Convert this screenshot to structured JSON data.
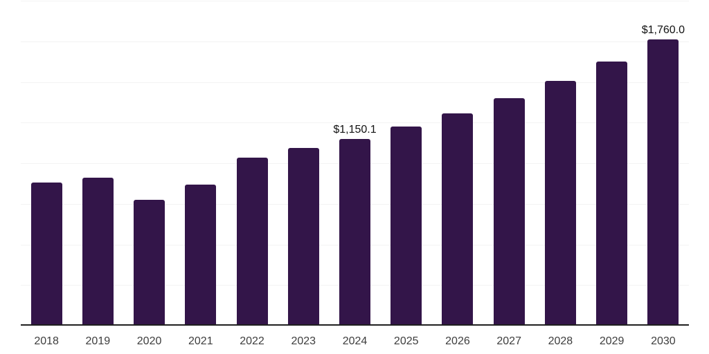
{
  "chart_data": {
    "type": "bar",
    "categories": [
      "2018",
      "2019",
      "2020",
      "2021",
      "2022",
      "2023",
      "2024",
      "2025",
      "2026",
      "2027",
      "2028",
      "2029",
      "2030"
    ],
    "values": [
      880,
      910,
      776,
      870,
      1032,
      1092,
      1150.1,
      1224,
      1308,
      1400,
      1505,
      1626,
      1760
    ],
    "value_labels": [
      "",
      "",
      "",
      "",
      "",
      "",
      "$1,150.1",
      "",
      "",
      "",
      "",
      "",
      "$1,760.0"
    ],
    "title": "",
    "xlabel": "",
    "ylabel": "",
    "ylim": [
      0,
      2000
    ],
    "gridline_step": 250,
    "grid": true,
    "legend": false,
    "colors": {
      "bar": "#331549",
      "gridline": "#f3f3f3",
      "axis": "#1f1f1f",
      "value_label": "#111111",
      "tick_label": "#3d3d3d",
      "background": "#ffffff"
    }
  }
}
